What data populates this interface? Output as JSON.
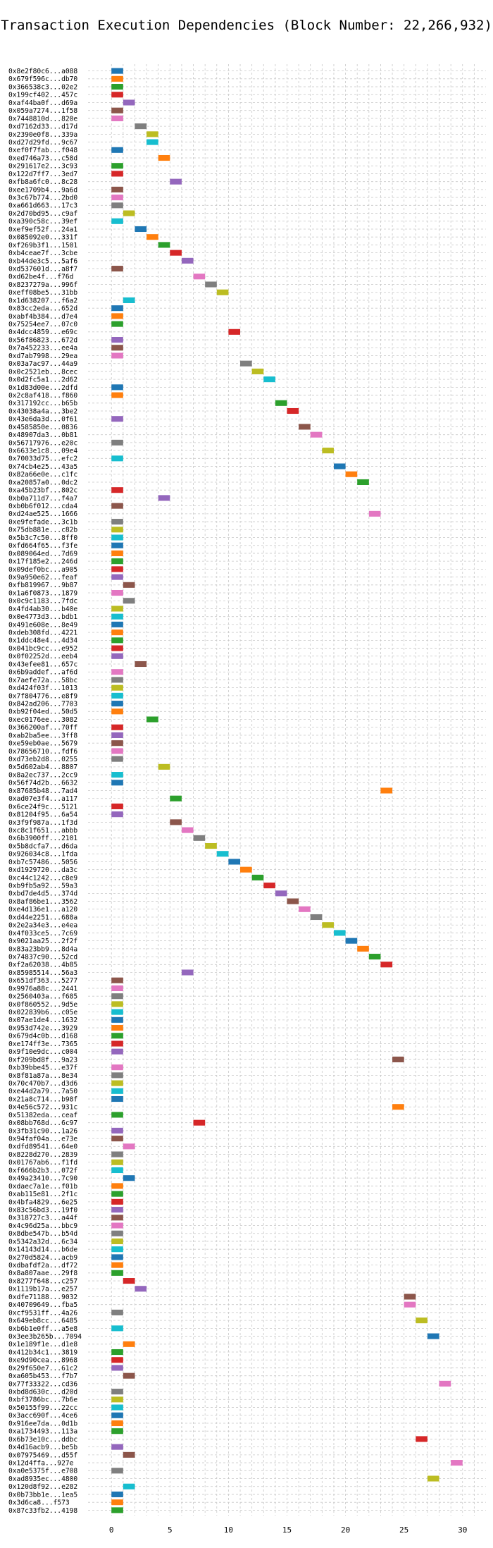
{
  "chart_data": {
    "type": "bar",
    "title": "Transaction Execution Dependencies (Block Number: 22,266,932)",
    "xlabel": "",
    "ylabel": "",
    "xlim": [
      -2,
      32
    ],
    "xticks": [
      0,
      5,
      10,
      15,
      20,
      25,
      30
    ],
    "grid": true,
    "bar_width": 1,
    "palette": [
      "#1f77b4",
      "#ff7f0e",
      "#2ca02c",
      "#d62728",
      "#9467bd",
      "#8c564b",
      "#e377c2",
      "#7f7f7f",
      "#bcbd22",
      "#17becf"
    ],
    "transactions": [
      {
        "label": "0x8e2f80c6...a088",
        "start": 0
      },
      {
        "label": "0x679f596c...db70",
        "start": 0
      },
      {
        "label": "0x366538c3...02e2",
        "start": 0
      },
      {
        "label": "0x199cf402...457c",
        "start": 0
      },
      {
        "label": "0xaf44ba0f...d69a",
        "start": 1
      },
      {
        "label": "0x059a7274...1f58",
        "start": 0
      },
      {
        "label": "0x7448810d...820e",
        "start": 0
      },
      {
        "label": "0xd7162d33...d17d",
        "start": 2
      },
      {
        "label": "0x2390e0f8...339a",
        "start": 3
      },
      {
        "label": "0xd27d29fd...9c67",
        "start": 3
      },
      {
        "label": "0xef0f7fab...f048",
        "start": 0
      },
      {
        "label": "0xed746a73...c58d",
        "start": 4
      },
      {
        "label": "0x291617e2...3c93",
        "start": 0
      },
      {
        "label": "0x122d7ff7...3ed7",
        "start": 0
      },
      {
        "label": "0xfb8a6fc0...8c28",
        "start": 5
      },
      {
        "label": "0xee1709b4...9a6d",
        "start": 0
      },
      {
        "label": "0x3c67b774...2bd0",
        "start": 0
      },
      {
        "label": "0xa661d663...17c3",
        "start": 0
      },
      {
        "label": "0x2d70bd95...c9af",
        "start": 1
      },
      {
        "label": "0xa390c58c...39ef",
        "start": 0
      },
      {
        "label": "0xef9ef52f...24a1",
        "start": 2
      },
      {
        "label": "0x085092e0...331f",
        "start": 3
      },
      {
        "label": "0xf269b3f1...1501",
        "start": 4
      },
      {
        "label": "0xb4ceae7f...3cbe",
        "start": 5
      },
      {
        "label": "0xb44de3c5...5af6",
        "start": 6
      },
      {
        "label": "0xd537601d...a8f7",
        "start": 0
      },
      {
        "label": "0xd62be4f...f76d",
        "start": 7
      },
      {
        "label": "0x8237279a...996f",
        "start": 8
      },
      {
        "label": "0xeff08be5...31bb",
        "start": 9
      },
      {
        "label": "0x1d638207...f6a2",
        "start": 1
      },
      {
        "label": "0x83cc2eda...652d",
        "start": 0
      },
      {
        "label": "0xabf4b384...d7e4",
        "start": 0
      },
      {
        "label": "0x75254ee7...07c0",
        "start": 0
      },
      {
        "label": "0x4dcc4859...e69c",
        "start": 10
      },
      {
        "label": "0x56f86823...672d",
        "start": 0
      },
      {
        "label": "0x7a452233...ee4a",
        "start": 0
      },
      {
        "label": "0xd7ab7998...29ea",
        "start": 0
      },
      {
        "label": "0x03a7ac97...44a9",
        "start": 11
      },
      {
        "label": "0x0c2521eb...8cec",
        "start": 12
      },
      {
        "label": "0x0d2fc5a1...2d62",
        "start": 13
      },
      {
        "label": "0x1d83d00e...2dfd",
        "start": 0
      },
      {
        "label": "0x2c8af418...f860",
        "start": 0
      },
      {
        "label": "0x317192cc...b65b",
        "start": 14
      },
      {
        "label": "0x43038a4a...3be2",
        "start": 15
      },
      {
        "label": "0x43e6da3d...0f61",
        "start": 0
      },
      {
        "label": "0x4585850e...0836",
        "start": 16
      },
      {
        "label": "0x48907da3...0b81",
        "start": 17
      },
      {
        "label": "0x56717976...e20c",
        "start": 0
      },
      {
        "label": "0x6633e1c8...09e4",
        "start": 18
      },
      {
        "label": "0x70033d75...efc2",
        "start": 0
      },
      {
        "label": "0x74cb4e25...43a5",
        "start": 19
      },
      {
        "label": "0x82a66e0e...c1fc",
        "start": 20
      },
      {
        "label": "0xa20857a0...0dc2",
        "start": 21
      },
      {
        "label": "0xa45b23bf...802c",
        "start": 0
      },
      {
        "label": "0xb0a711d7...f4a7",
        "start": 4
      },
      {
        "label": "0xb0b6f012...cda4",
        "start": 0
      },
      {
        "label": "0xd24ae525...1666",
        "start": 22
      },
      {
        "label": "0xe9fefade...3c1b",
        "start": 0
      },
      {
        "label": "0x75db881e...c82b",
        "start": 0
      },
      {
        "label": "0x5b3c7c50...8ff0",
        "start": 0
      },
      {
        "label": "0xfd664f65...f3fe",
        "start": 0
      },
      {
        "label": "0x089064ed...7d69",
        "start": 0
      },
      {
        "label": "0x17f185e2...246d",
        "start": 0
      },
      {
        "label": "0x09def0bc...a905",
        "start": 0
      },
      {
        "label": "0x9a950e62...feaf",
        "start": 0
      },
      {
        "label": "0xfb819967...9b87",
        "start": 1
      },
      {
        "label": "0x1a6f0873...1879",
        "start": 0
      },
      {
        "label": "0x0c9c1183...7fdc",
        "start": 1
      },
      {
        "label": "0x4fd4ab30...b40e",
        "start": 0
      },
      {
        "label": "0x0e4773d3...bdb1",
        "start": 0
      },
      {
        "label": "0x491e608e...8e49",
        "start": 0
      },
      {
        "label": "0xdeb308fd...4221",
        "start": 0
      },
      {
        "label": "0x1ddc48e4...4d34",
        "start": 0
      },
      {
        "label": "0x041bc9cc...e952",
        "start": 0
      },
      {
        "label": "0x0f02252d...eeb4",
        "start": 0
      },
      {
        "label": "0x43efee81...657c",
        "start": 2
      },
      {
        "label": "0x6b9addef...af6d",
        "start": 0
      },
      {
        "label": "0x7aefe72a...58bc",
        "start": 0
      },
      {
        "label": "0xd424f03f...1013",
        "start": 0
      },
      {
        "label": "0x7f804776...e8f9",
        "start": 0
      },
      {
        "label": "0x842ad206...7703",
        "start": 0
      },
      {
        "label": "0xb92f04ed...50d5",
        "start": 0
      },
      {
        "label": "0xec0176ee...3082",
        "start": 3
      },
      {
        "label": "0x366200af...70ff",
        "start": 0
      },
      {
        "label": "0xab2ba5ee...3ff8",
        "start": 0
      },
      {
        "label": "0xe59eb0ae...5679",
        "start": 0
      },
      {
        "label": "0x78656710...fdf6",
        "start": 0
      },
      {
        "label": "0xd73eb2d8...0255",
        "start": 0
      },
      {
        "label": "0x5d602ab4...8807",
        "start": 4
      },
      {
        "label": "0x8a2ec737...2cc9",
        "start": 0
      },
      {
        "label": "0x56f74d2b...6632",
        "start": 0
      },
      {
        "label": "0x87685b48...7ad4",
        "start": 23
      },
      {
        "label": "0xad07e3f4...a117",
        "start": 5
      },
      {
        "label": "0x6ce24f9c...5121",
        "start": 0
      },
      {
        "label": "0x81204f95...6a54",
        "start": 0
      },
      {
        "label": "0x3f9f987a...1f3d",
        "start": 5
      },
      {
        "label": "0xc8c1f651...abbb",
        "start": 6
      },
      {
        "label": "0x6b3900ff...2101",
        "start": 7
      },
      {
        "label": "0x5b8dcfa7...d6da",
        "start": 8
      },
      {
        "label": "0x926034c8...1fda",
        "start": 9
      },
      {
        "label": "0xb7c57486...5056",
        "start": 10
      },
      {
        "label": "0xd1929720...da3c",
        "start": 11
      },
      {
        "label": "0xc44c1242...c8e9",
        "start": 12
      },
      {
        "label": "0xb9fb5a92...59a3",
        "start": 13
      },
      {
        "label": "0xbd7de4d5...374d",
        "start": 14
      },
      {
        "label": "0x8af86be1...3562",
        "start": 15
      },
      {
        "label": "0xe4d136e1...a120",
        "start": 16
      },
      {
        "label": "0xd44e2251...688a",
        "start": 17
      },
      {
        "label": "0x2e2a34e3...e4ea",
        "start": 18
      },
      {
        "label": "0x4f033ce5...7c69",
        "start": 19
      },
      {
        "label": "0x9021aa25...2f2f",
        "start": 20
      },
      {
        "label": "0x83a23bb9...8d4a",
        "start": 21
      },
      {
        "label": "0x74837c90...52cd",
        "start": 22
      },
      {
        "label": "0xf2a62038...4b85",
        "start": 23
      },
      {
        "label": "0x85985514...56a3",
        "start": 6
      },
      {
        "label": "0x651df363...5277",
        "start": 0
      },
      {
        "label": "0x9976a88c...2441",
        "start": 0
      },
      {
        "label": "0x2560403a...f685",
        "start": 0
      },
      {
        "label": "0x0f860552...9d5e",
        "start": 0
      },
      {
        "label": "0x022839b6...c05e",
        "start": 0
      },
      {
        "label": "0x07ae1de4...1632",
        "start": 0
      },
      {
        "label": "0x953d742e...3929",
        "start": 0
      },
      {
        "label": "0x679d4c0b...d168",
        "start": 0
      },
      {
        "label": "0xe174ff3e...7365",
        "start": 0
      },
      {
        "label": "0x9f10e9dc...c004",
        "start": 0
      },
      {
        "label": "0xf209bd8f...9a23",
        "start": 24
      },
      {
        "label": "0xb39bbe45...e37f",
        "start": 0
      },
      {
        "label": "0x8f81a87a...8e34",
        "start": 0
      },
      {
        "label": "0x70c470b7...d3d6",
        "start": 0
      },
      {
        "label": "0xe44d2a79...7a50",
        "start": 0
      },
      {
        "label": "0x21a8c714...b98f",
        "start": 0
      },
      {
        "label": "0x4e56c572...931c",
        "start": 24
      },
      {
        "label": "0x51382eda...ceaf",
        "start": 0
      },
      {
        "label": "0x08bb768d...6c97",
        "start": 7
      },
      {
        "label": "0x3fb31c90...1a26",
        "start": 0
      },
      {
        "label": "0x94faf04a...e73e",
        "start": 0
      },
      {
        "label": "0xdfd89541...64e0",
        "start": 1
      },
      {
        "label": "0x8228d270...2839",
        "start": 0
      },
      {
        "label": "0x01767ab6...f1fd",
        "start": 0
      },
      {
        "label": "0xf666b2b3...072f",
        "start": 0
      },
      {
        "label": "0x49a23410...7c90",
        "start": 1
      },
      {
        "label": "0xdaec7a1e...f01b",
        "start": 0
      },
      {
        "label": "0xab115e81...2f1c",
        "start": 0
      },
      {
        "label": "0x4bfa4829...6e25",
        "start": 0
      },
      {
        "label": "0x83c56bd3...19f0",
        "start": 0
      },
      {
        "label": "0x318727c3...a44f",
        "start": 0
      },
      {
        "label": "0x4c96d25a...bbc9",
        "start": 0
      },
      {
        "label": "0x8dbe547b...b54d",
        "start": 0
      },
      {
        "label": "0x5342a32d...6c34",
        "start": 0
      },
      {
        "label": "0x14143d14...b6de",
        "start": 0
      },
      {
        "label": "0x270d5824...acb9",
        "start": 0
      },
      {
        "label": "0xdbafdf2a...df72",
        "start": 0
      },
      {
        "label": "0x8a807aae...29f8",
        "start": 0
      },
      {
        "label": "0x8277f648...c257",
        "start": 1
      },
      {
        "label": "0x1119b17a...e257",
        "start": 2
      },
      {
        "label": "0xdfe71188...9032",
        "start": 25
      },
      {
        "label": "0x40709649...fba5",
        "start": 25
      },
      {
        "label": "0xcf9531ff...4a26",
        "start": 0
      },
      {
        "label": "0x649eb8cc...6485",
        "start": 26
      },
      {
        "label": "0xb6b1e0ff...a5e8",
        "start": 0
      },
      {
        "label": "0x3ee3b265b...7094",
        "start": 27
      },
      {
        "label": "0x1e189f1e...d1e8",
        "start": 1
      },
      {
        "label": "0x412b34c1...3819",
        "start": 0
      },
      {
        "label": "0xe9d90cea...8968",
        "start": 0
      },
      {
        "label": "0x29f650e7...61c2",
        "start": 0
      },
      {
        "label": "0xa605b453...f7b7",
        "start": 1
      },
      {
        "label": "0x77f33322...cd36",
        "start": 28
      },
      {
        "label": "0xbd8d630c...d20d",
        "start": 0
      },
      {
        "label": "0xbf3786bc...7b6e",
        "start": 0
      },
      {
        "label": "0x50155f99...22cc",
        "start": 0
      },
      {
        "label": "0x3acc690f...4ce6",
        "start": 0
      },
      {
        "label": "0x916ee7da...0d1b",
        "start": 0
      },
      {
        "label": "0xa1734493...113a",
        "start": 0
      },
      {
        "label": "0x6b73e10c...ddbc",
        "start": 26
      },
      {
        "label": "0x4d16acb9...be5b",
        "start": 0
      },
      {
        "label": "0x07975469...d55f",
        "start": 1
      },
      {
        "label": "0x12d4ffa...927e",
        "start": 29
      },
      {
        "label": "0xa0e5375f...e708",
        "start": 0
      },
      {
        "label": "0xad8935ec...4800",
        "start": 27
      },
      {
        "label": "0x120d8f92...e282",
        "start": 1
      },
      {
        "label": "0x0b73bb1e...1ea5",
        "start": 0
      },
      {
        "label": "0x3d6ca8...f573",
        "start": 0
      },
      {
        "label": "0x87c33fb2...4198",
        "start": 0
      }
    ]
  }
}
